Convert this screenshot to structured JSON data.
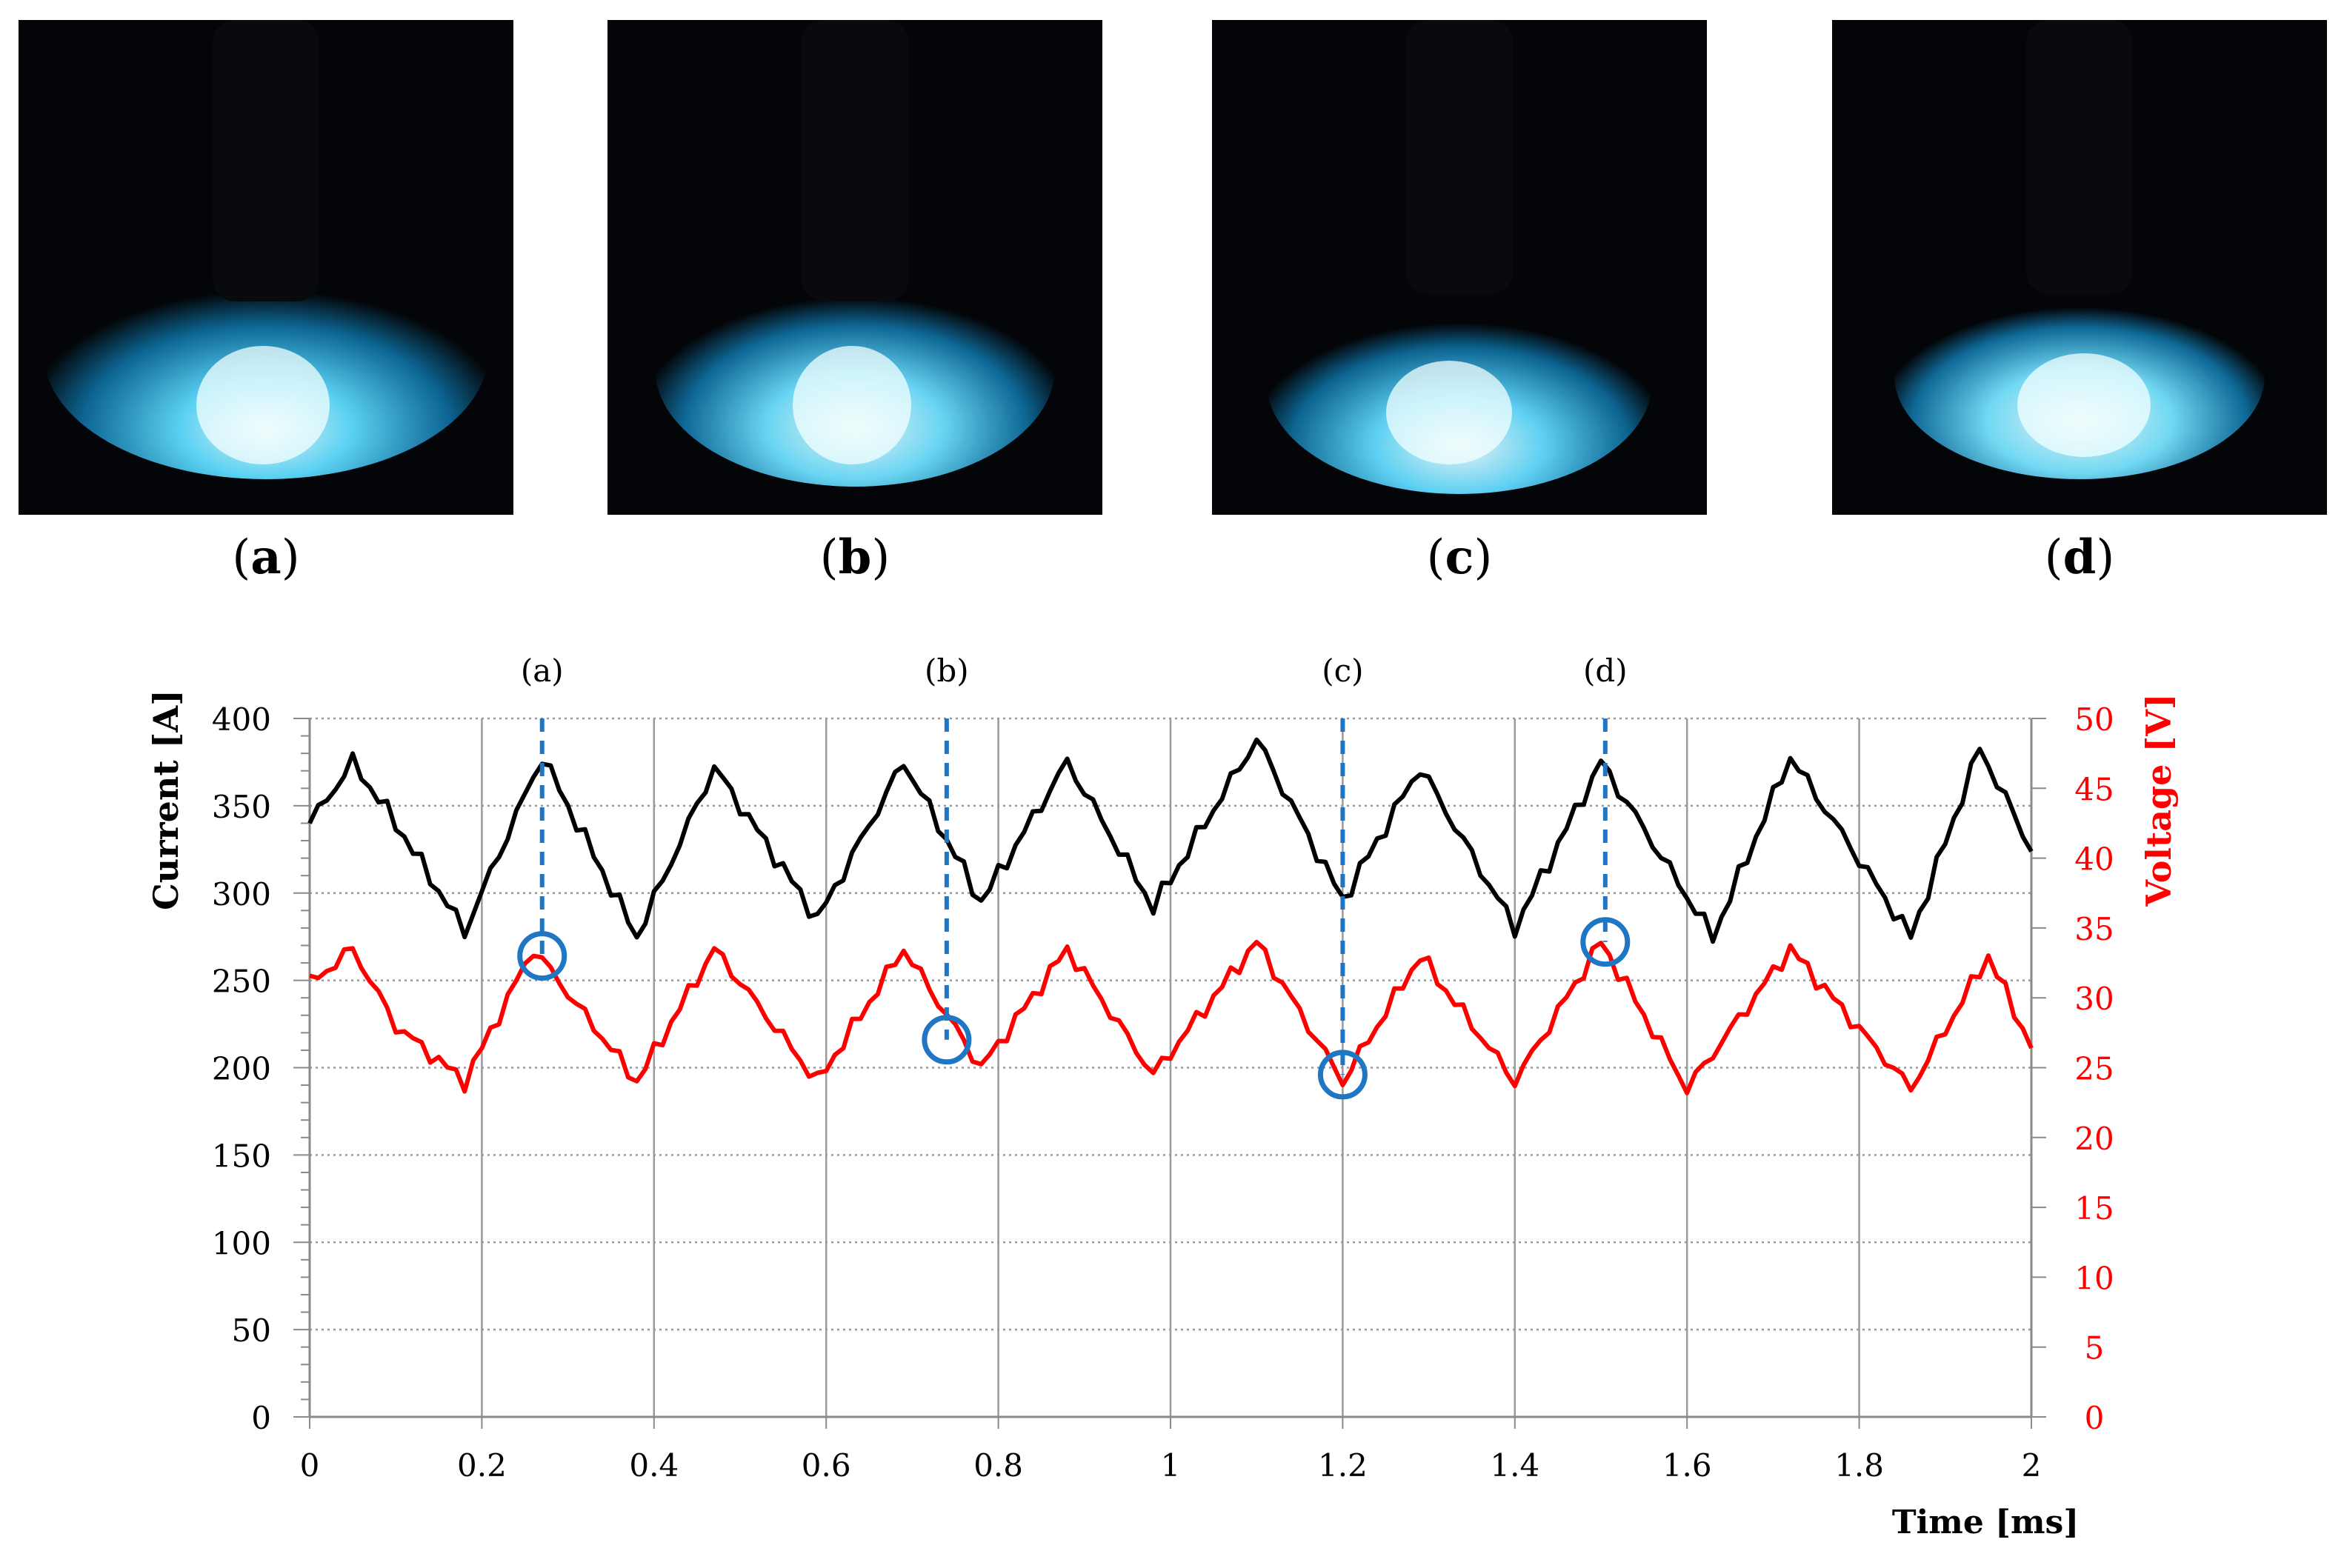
{
  "panels": [
    {
      "label": "a",
      "caption": "(a)"
    },
    {
      "label": "b",
      "caption": "(b)"
    },
    {
      "label": "c",
      "caption": "(c)"
    },
    {
      "label": "d",
      "caption": "(d)"
    }
  ],
  "colors": {
    "current": "#000000",
    "voltage": "#ff0000",
    "marker": "#1f77c4",
    "grid": "#9a9a9a",
    "photo_bg": "#030508",
    "plasma": "#7fe8ff"
  },
  "chart_data": {
    "type": "line",
    "xlabel": "Time [ms]",
    "ylabel_left": "Current [A]",
    "ylabel_right": "Voltage [V]",
    "xlim": [
      0,
      2
    ],
    "ylim_left": [
      0,
      400
    ],
    "ylim_right": [
      0,
      50
    ],
    "x_ticks": [
      "0",
      "0.2",
      "0.4",
      "0.6",
      "0.8",
      "1",
      "1.2",
      "1.4",
      "1.6",
      "1.8",
      "2"
    ],
    "y_ticks_left": [
      "0",
      "50",
      "100",
      "150",
      "200",
      "250",
      "300",
      "350",
      "400"
    ],
    "y_ticks_right": [
      "0",
      "5",
      "10",
      "15",
      "20",
      "25",
      "30",
      "35",
      "40",
      "45",
      "50"
    ],
    "series": [
      {
        "name": "Current",
        "axis": "left",
        "x": [
          0,
          0.05,
          0.1,
          0.18,
          0.27,
          0.38,
          0.47,
          0.59,
          0.69,
          0.78,
          0.88,
          0.98,
          1.1,
          1.2,
          1.29,
          1.4,
          1.5,
          1.63,
          1.72,
          1.86,
          1.94,
          2.0
        ],
        "values": [
          340,
          375,
          340,
          278,
          378,
          275,
          372,
          285,
          375,
          295,
          375,
          292,
          388,
          296,
          372,
          280,
          375,
          275,
          378,
          275,
          383,
          325
        ]
      },
      {
        "name": "Voltage",
        "axis": "right",
        "x": [
          0,
          0.05,
          0.1,
          0.18,
          0.26,
          0.38,
          0.47,
          0.59,
          0.69,
          0.78,
          0.88,
          0.98,
          1.1,
          1.2,
          1.29,
          1.4,
          1.5,
          1.6,
          1.72,
          1.86,
          1.95,
          2.0
        ],
        "values": [
          31,
          33.5,
          28,
          24,
          33.5,
          24,
          33.5,
          24,
          33.5,
          25,
          33.5,
          24.5,
          34,
          24,
          33,
          24,
          34,
          23.5,
          33.5,
          23.5,
          33,
          26.5
        ]
      }
    ],
    "markers": [
      {
        "label": "(a)",
        "x": 0.27,
        "voltage": 33
      },
      {
        "label": "(b)",
        "x": 0.74,
        "voltage": 27
      },
      {
        "label": "(c)",
        "x": 1.2,
        "voltage": 24.5
      },
      {
        "label": "(d)",
        "x": 1.505,
        "voltage": 34
      }
    ]
  }
}
